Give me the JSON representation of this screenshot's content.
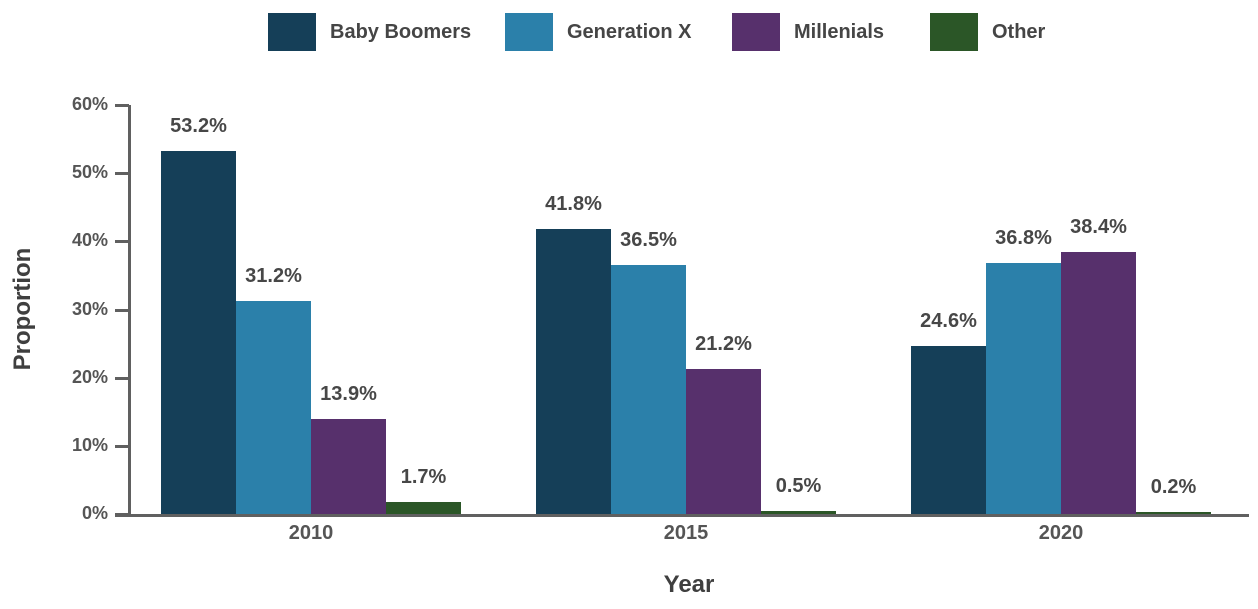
{
  "chart_data": {
    "type": "bar",
    "title": "",
    "xlabel": "Year",
    "ylabel": "Proportion",
    "categories": [
      "2010",
      "2015",
      "2020"
    ],
    "series": [
      {
        "name": "Baby Boomers",
        "color": "#153f58",
        "values": [
          53.2,
          41.8,
          24.6
        ],
        "labels": [
          "53.2%",
          "41.8%",
          "24.6%"
        ]
      },
      {
        "name": "Generation X",
        "color": "#2b80aa",
        "values": [
          31.2,
          36.5,
          36.8
        ],
        "labels": [
          "31.2%",
          "36.5%",
          "36.8%"
        ]
      },
      {
        "name": "Millenials",
        "color": "#57306c",
        "values": [
          13.9,
          21.2,
          38.4
        ],
        "labels": [
          "13.9%",
          "21.2%",
          "38.4%"
        ]
      },
      {
        "name": "Other",
        "color": "#2b5627",
        "values": [
          1.7,
          0.5,
          0.2
        ],
        "labels": [
          "1.7%",
          "0.5%",
          "0.2%"
        ]
      }
    ],
    "ylim": [
      0,
      60
    ],
    "yticks": [
      {
        "value": 0,
        "label": "0%"
      },
      {
        "value": 10,
        "label": "10%"
      },
      {
        "value": 20,
        "label": "20%"
      },
      {
        "value": 30,
        "label": "30%"
      },
      {
        "value": 40,
        "label": "40%"
      },
      {
        "value": 50,
        "label": "50%"
      },
      {
        "value": 60,
        "label": "60%"
      }
    ],
    "grid": false,
    "legend_position": "top"
  },
  "colors": {
    "axis": "#606060",
    "tick_label": "#555555",
    "value_label": "#474747",
    "axis_title": "#3f3f3f",
    "legend_label": "#454545"
  }
}
